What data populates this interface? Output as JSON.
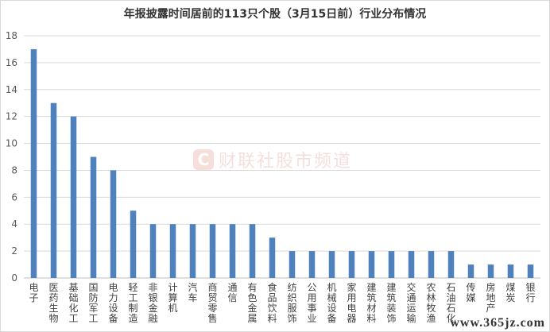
{
  "chart_data": {
    "type": "bar",
    "title": "年报披露时间居前的113只个股（3月15日前）行业分布情况",
    "categories": [
      "电子",
      "医药生物",
      "基础化工",
      "国防军工",
      "电力设备",
      "轻工制造",
      "非银金融",
      "计算机",
      "汽车",
      "商贸零售",
      "通信",
      "有色金属",
      "食品饮料",
      "纺织服饰",
      "公用事业",
      "机械设备",
      "家用电器",
      "建筑材料",
      "建筑装饰",
      "交通运输",
      "农林牧渔",
      "石油石化",
      "传媒",
      "房地产",
      "煤炭",
      "银行"
    ],
    "values": [
      17,
      13,
      12,
      9,
      8,
      5,
      4,
      4,
      4,
      4,
      4,
      4,
      3,
      2,
      2,
      2,
      2,
      2,
      2,
      2,
      2,
      2,
      1,
      1,
      1,
      1
    ],
    "ylim": [
      0,
      18
    ],
    "yticks": [
      "0",
      "2",
      "4",
      "6",
      "8",
      "10",
      "12",
      "14",
      "16",
      "18"
    ],
    "grid": true,
    "bar_color": "#4f81bd",
    "grid_color": "#d9d9d9"
  },
  "watermark": {
    "logo": "C",
    "text": "财联社股市频道"
  },
  "site_mark": "www.365jz.com"
}
